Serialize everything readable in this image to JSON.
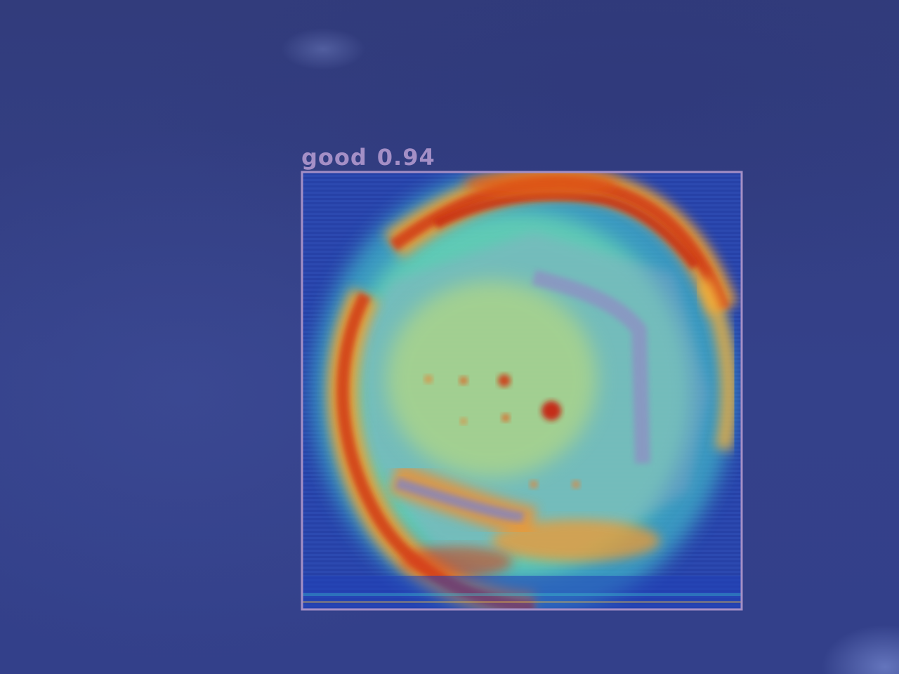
{
  "detection": {
    "class_label": "good",
    "confidence": "0.94",
    "box_color": "#a48fc6"
  }
}
